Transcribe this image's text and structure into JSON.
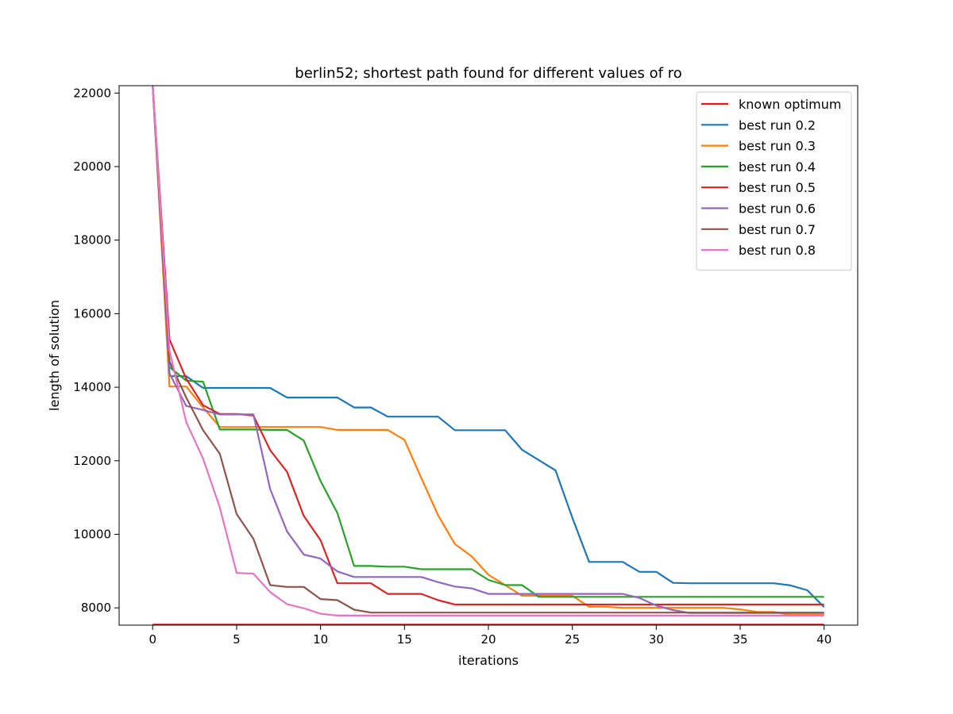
{
  "chart_data": {
    "type": "line",
    "title": "berlin52; shortest path found for different values of ro",
    "xlabel": "iterations",
    "ylabel": "length of solution",
    "xlim": [
      -2,
      42
    ],
    "ylim": [
      7530,
      22200
    ],
    "xticks": [
      0,
      5,
      10,
      15,
      20,
      25,
      30,
      35,
      40
    ],
    "yticks": [
      8000,
      10000,
      12000,
      14000,
      16000,
      18000,
      20000,
      22000
    ],
    "grid": false,
    "legend_position": "top-right",
    "x": [
      0,
      1,
      2,
      3,
      4,
      5,
      6,
      7,
      8,
      9,
      10,
      11,
      12,
      13,
      14,
      15,
      16,
      17,
      18,
      19,
      20,
      21,
      22,
      23,
      24,
      25,
      26,
      27,
      28,
      29,
      30,
      31,
      32,
      33,
      34,
      35,
      36,
      37,
      38,
      39,
      40
    ],
    "series": [
      {
        "name": "known optimum",
        "color": "#e31a1c",
        "values": [
          7542,
          7542,
          7542,
          7542,
          7542,
          7542,
          7542,
          7542,
          7542,
          7542,
          7542,
          7542,
          7542,
          7542,
          7542,
          7542,
          7542,
          7542,
          7542,
          7542,
          7542,
          7542,
          7542,
          7542,
          7542,
          7542,
          7542,
          7542,
          7542,
          7542,
          7542,
          7542,
          7542,
          7542,
          7542,
          7542,
          7542,
          7542,
          7542,
          7542,
          7542
        ]
      },
      {
        "name": "best run 0.2",
        "color": "#1f77b4",
        "values": [
          22200,
          14300,
          14300,
          13980,
          13980,
          13980,
          13980,
          13980,
          13720,
          13720,
          13720,
          13720,
          13450,
          13450,
          13200,
          13200,
          13200,
          13200,
          12830,
          12830,
          12830,
          12830,
          12300,
          12020,
          11740,
          10450,
          9250,
          9250,
          9250,
          8980,
          8980,
          8680,
          8670,
          8670,
          8670,
          8670,
          8670,
          8670,
          8610,
          8480,
          8020
        ]
      },
      {
        "name": "best run 0.3",
        "color": "#ff7f0e",
        "values": [
          22200,
          14020,
          14020,
          13450,
          12920,
          12920,
          12920,
          12920,
          12920,
          12920,
          12920,
          12840,
          12840,
          12840,
          12840,
          12570,
          11530,
          10520,
          9740,
          9400,
          8900,
          8620,
          8330,
          8330,
          8330,
          8330,
          8030,
          8030,
          8000,
          8000,
          8000,
          8000,
          8000,
          8000,
          8000,
          7960,
          7890,
          7890,
          7810,
          7810,
          7810
        ]
      },
      {
        "name": "best run 0.4",
        "color": "#2ca02c",
        "values": [
          22200,
          14550,
          14180,
          14150,
          12850,
          12850,
          12850,
          12840,
          12840,
          12550,
          11450,
          10580,
          9140,
          9140,
          9120,
          9120,
          9050,
          9050,
          9050,
          9050,
          8760,
          8620,
          8620,
          8300,
          8300,
          8300,
          8300,
          8300,
          8300,
          8300,
          8300,
          8300,
          8300,
          8300,
          8300,
          8300,
          8300,
          8300,
          8300,
          8300,
          8300
        ]
      },
      {
        "name": "best run 0.5",
        "color": "#d62728",
        "values": [
          22200,
          15300,
          14230,
          13510,
          13270,
          13270,
          13230,
          12290,
          11700,
          10500,
          9840,
          8670,
          8670,
          8670,
          8380,
          8380,
          8380,
          8210,
          8090,
          8090,
          8090,
          8090,
          8090,
          8090,
          8090,
          8090,
          8090,
          8090,
          8090,
          8090,
          8090,
          8090,
          8090,
          8090,
          8090,
          8090,
          8090,
          8090,
          8090,
          8090,
          8090
        ]
      },
      {
        "name": "best run 0.6",
        "color": "#9467bd",
        "values": [
          22200,
          14380,
          13490,
          13380,
          13260,
          13260,
          13260,
          11230,
          10080,
          9450,
          9340,
          8990,
          8840,
          8840,
          8840,
          8840,
          8840,
          8700,
          8580,
          8530,
          8380,
          8380,
          8380,
          8380,
          8380,
          8380,
          8380,
          8380,
          8380,
          8270,
          8060,
          7940,
          7860,
          7860,
          7860,
          7860,
          7860,
          7860,
          7860,
          7860,
          7860
        ]
      },
      {
        "name": "best run 0.7",
        "color": "#8c564b",
        "values": [
          22200,
          14700,
          13720,
          12830,
          12190,
          10550,
          9880,
          8620,
          8570,
          8570,
          8240,
          8210,
          7950,
          7870,
          7870,
          7870,
          7870,
          7870,
          7870,
          7870,
          7870,
          7870,
          7870,
          7870,
          7870,
          7870,
          7870,
          7870,
          7870,
          7870,
          7870,
          7870,
          7870,
          7870,
          7870,
          7870,
          7870,
          7870,
          7870,
          7870,
          7870
        ]
      },
      {
        "name": "best run 0.8",
        "color": "#e377c2",
        "values": [
          22200,
          15000,
          13050,
          12060,
          10730,
          8950,
          8930,
          8430,
          8100,
          7990,
          7840,
          7790,
          7790,
          7790,
          7790,
          7790,
          7790,
          7790,
          7790,
          7790,
          7790,
          7790,
          7790,
          7790,
          7790,
          7790,
          7790,
          7790,
          7790,
          7790,
          7790,
          7790,
          7790,
          7790,
          7790,
          7790,
          7790,
          7790,
          7790,
          7790,
          7790
        ]
      }
    ]
  }
}
